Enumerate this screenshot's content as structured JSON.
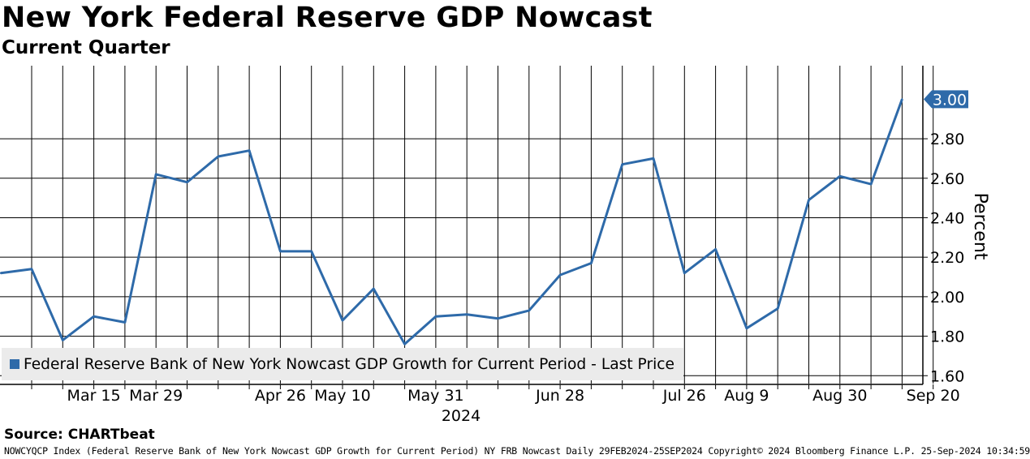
{
  "title": "New York Federal Reserve GDP Nowcast",
  "subtitle": "Current Quarter",
  "source": "Source: CHARTbeat",
  "footer": "NOWCYQCP Index (Federal Reserve Bank of New York Nowcast GDP Growth for Current Period) NY FRB Nowcast  Daily 29FEB2024-25SEP2024 Copyright© 2024 Bloomberg Finance L.P. 25-Sep-2024 10:34:59",
  "chart_data": {
    "type": "line",
    "title": "New York Federal Reserve GDP Nowcast",
    "subtitle": "Current Quarter",
    "ylabel": "Percent",
    "xlabel": "2024",
    "ylim": [
      1.56,
      3.17
    ],
    "y_ticks": [
      1.6,
      1.8,
      2.0,
      2.2,
      2.4,
      2.6,
      2.8
    ],
    "grid": true,
    "legend_position": "bottom-left",
    "last_price_label": "3.00",
    "colors": {
      "line": "#2e6aa9",
      "last_price_bg": "#2e6aa9",
      "legend_bg": "#ebebeb"
    },
    "x_gridlines": [
      "Mar 1",
      "Mar 8",
      "Mar 15",
      "Mar 22",
      "Mar 29",
      "Apr 5",
      "Apr 12",
      "Apr 19",
      "Apr 26",
      "May 3",
      "May 10",
      "May 17",
      "May 24",
      "May 31",
      "Jun 7",
      "Jun 14",
      "Jun 21",
      "Jun 28",
      "Jul 5",
      "Jul 12",
      "Jul 19",
      "Jul 26",
      "Aug 2",
      "Aug 9",
      "Aug 16",
      "Aug 23",
      "Aug 30",
      "Sep 6",
      "Sep 13",
      "Sep 20"
    ],
    "x_tick_labels": [
      "Mar 15",
      "Mar 29",
      "Apr 26",
      "May 10",
      "May 31",
      "Jun 28",
      "Jul 26",
      "Aug 9",
      "Aug 30",
      "Sep 20"
    ],
    "series": [
      {
        "name": "Federal Reserve Bank of New York Nowcast GDP Growth for Current Period - Last Price",
        "x": [
          "Feb 29",
          "Mar 8",
          "Mar 15",
          "Mar 22",
          "Mar 29",
          "Apr 5",
          "Apr 12",
          "Apr 19",
          "Apr 26",
          "May 3",
          "May 10",
          "May 17",
          "May 24",
          "May 31",
          "Jun 7",
          "Jun 14",
          "Jun 21",
          "Jun 28",
          "Jul 5",
          "Jul 12",
          "Jul 19",
          "Jul 26",
          "Aug 2",
          "Aug 9",
          "Aug 16",
          "Aug 23",
          "Aug 30",
          "Sep 6",
          "Sep 13",
          "Sep 20"
        ],
        "values": [
          2.12,
          2.14,
          1.78,
          1.9,
          1.87,
          2.62,
          2.58,
          2.71,
          2.74,
          2.23,
          2.23,
          1.88,
          2.04,
          1.76,
          1.9,
          1.91,
          1.89,
          1.93,
          2.11,
          2.17,
          2.67,
          2.7,
          2.12,
          2.24,
          1.84,
          1.94,
          2.49,
          2.61,
          2.57,
          3.0
        ]
      }
    ]
  }
}
